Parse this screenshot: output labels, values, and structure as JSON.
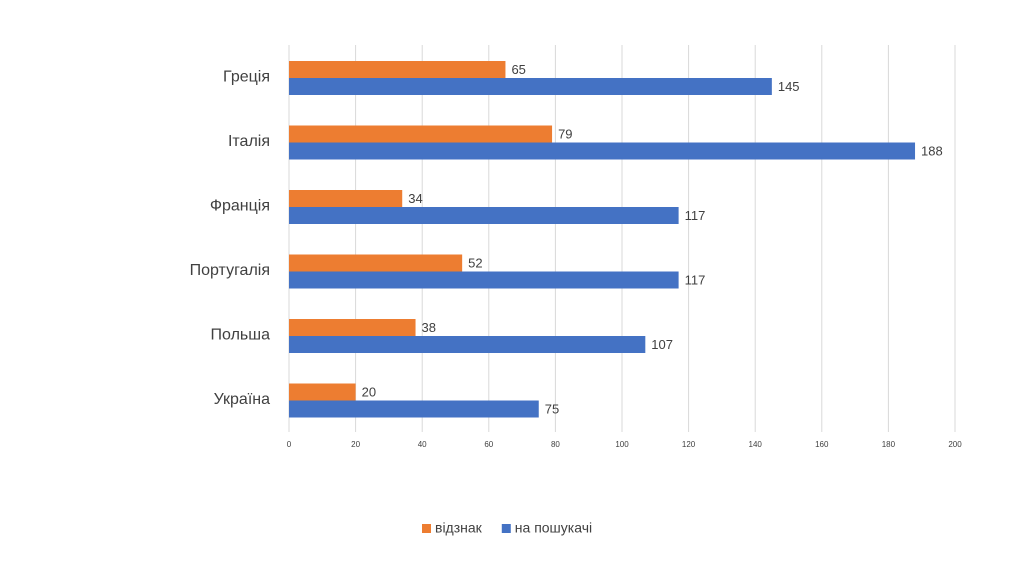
{
  "chart_data": {
    "type": "bar",
    "orientation": "horizontal",
    "categories": [
      "Греція",
      "Італія",
      "Франція",
      "Португалія",
      "Польша",
      "Україна"
    ],
    "series": [
      {
        "name": "відзнак",
        "color": "#ed7d31",
        "values": [
          65,
          79,
          34,
          52,
          38,
          20
        ]
      },
      {
        "name": "на пошукачі",
        "color": "#4472c4",
        "values": [
          145,
          188,
          117,
          117,
          107,
          75
        ]
      }
    ],
    "xlim": [
      0,
      200
    ],
    "xticks": [
      0,
      20,
      40,
      60,
      80,
      100,
      120,
      140,
      160,
      180,
      200
    ],
    "grid": true,
    "legend": "bottom"
  }
}
